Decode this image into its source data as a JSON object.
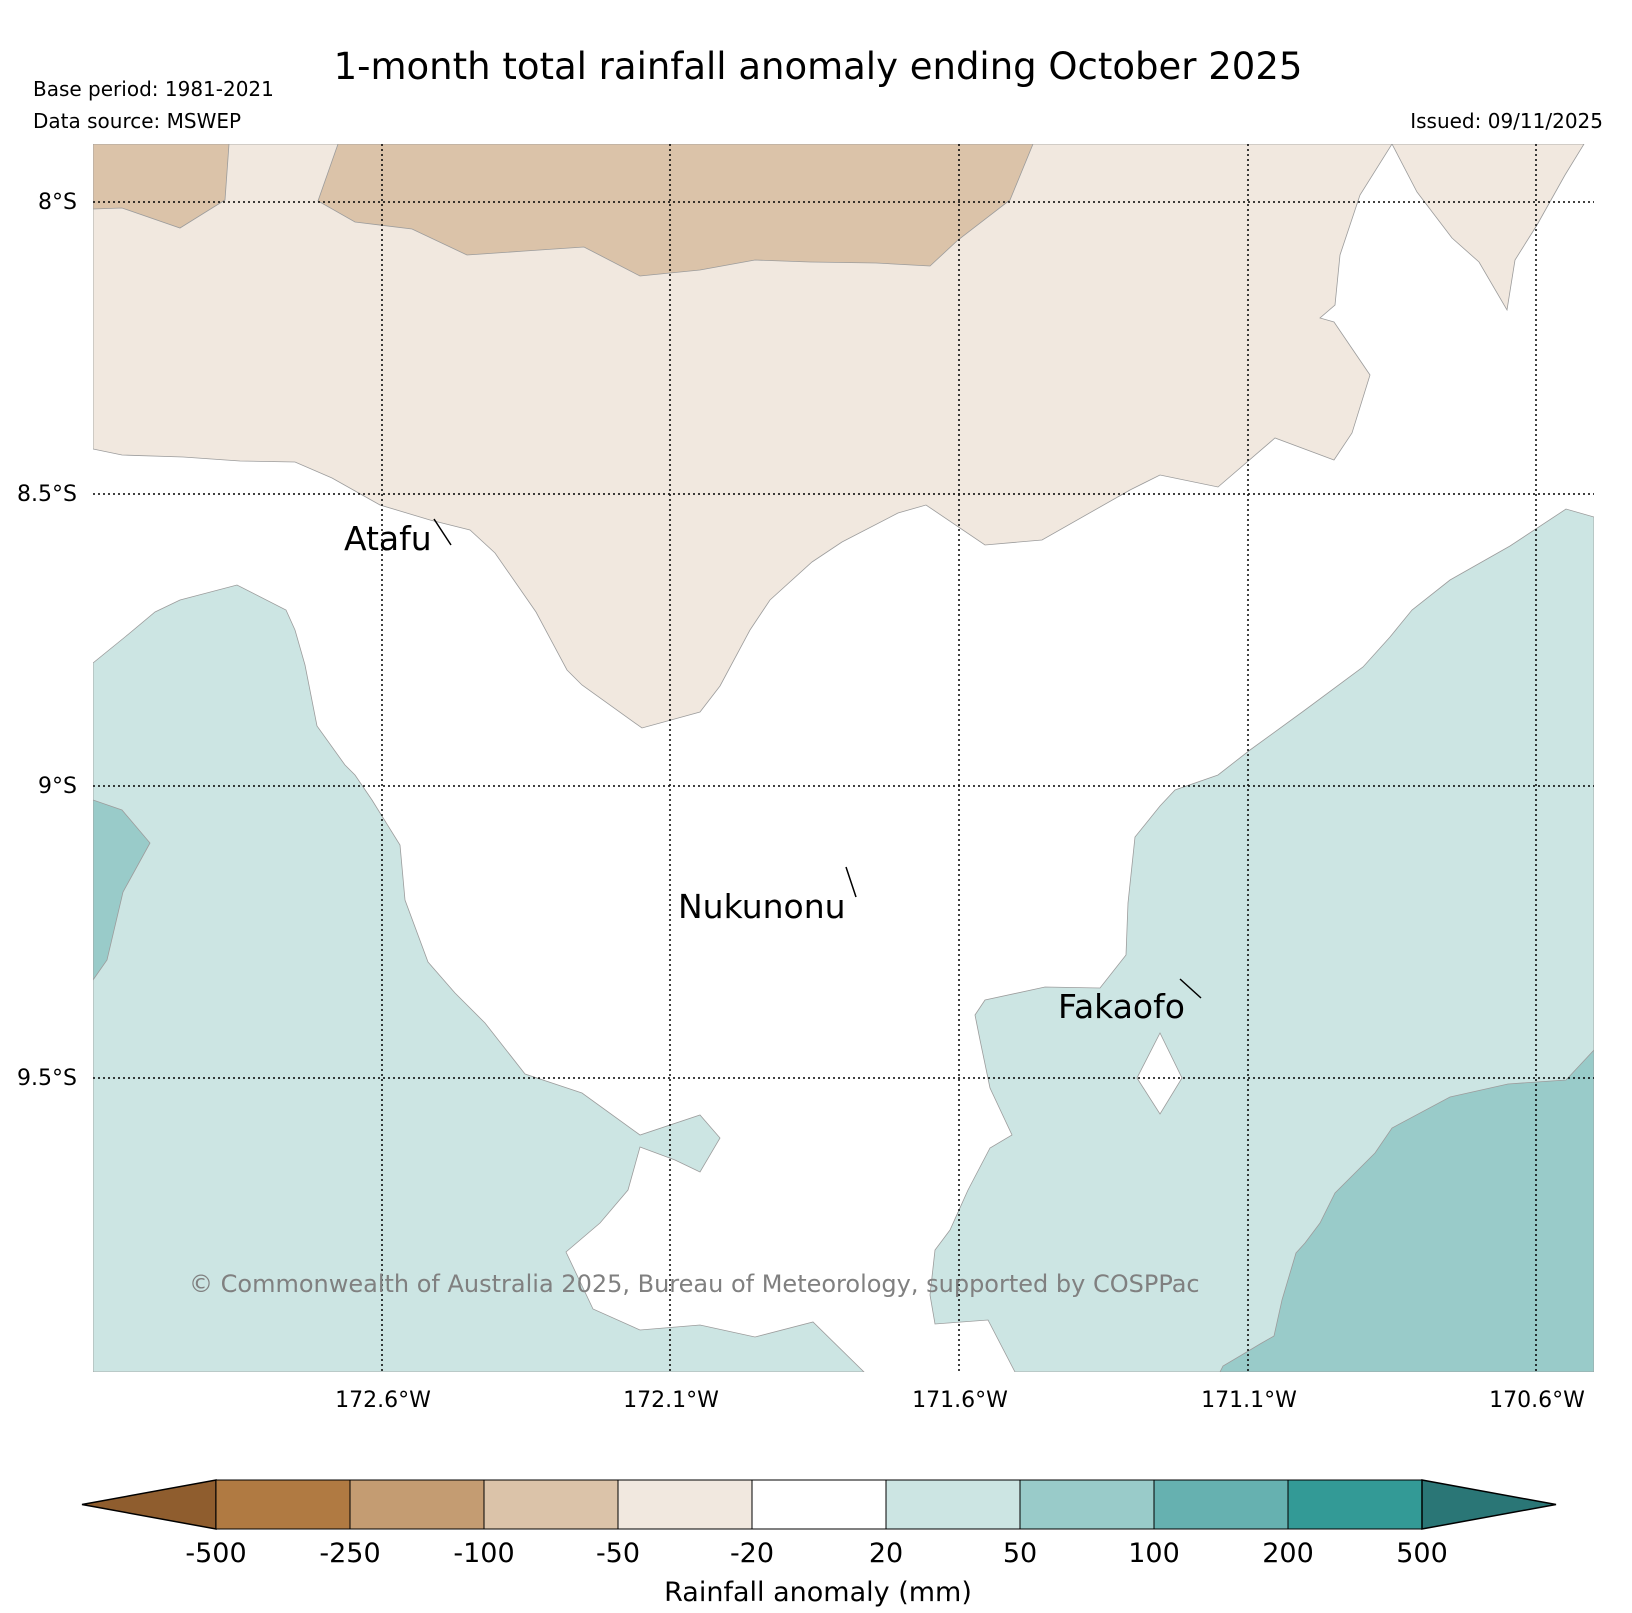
{
  "header": {
    "title": "1-month total rainfall anomaly ending October 2025",
    "base_period": "Base period: 1981-2021",
    "data_source": "Data source: MSWEP",
    "issued": "Issued: 09/11/2025"
  },
  "map": {
    "lat_labels": [
      "8°S",
      "8.5°S",
      "9°S",
      "9.5°S"
    ],
    "lon_labels": [
      "172.6°W",
      "172.1°W",
      "171.6°W",
      "171.1°W",
      "170.6°W"
    ],
    "places": [
      {
        "name": "Atafu"
      },
      {
        "name": "Nukunonu"
      },
      {
        "name": "Fakaofo"
      }
    ],
    "credit": "© Commonwealth of Australia 2025, Bureau of Meteorology, supported by COSPPac",
    "region_colors": {
      "-100 to -50": "#dbc3a9",
      "-50 to -20": "#f1e8df",
      "-20 to 20": "#ffffff",
      "20 to 50": "#cce5e3",
      "50 to 100": "#99cbc9"
    }
  },
  "colorbar": {
    "label": "Rainfall anomaly (mm)",
    "ticks": [
      "-500",
      "-250",
      "-100",
      "-50",
      "-20",
      "20",
      "50",
      "100",
      "200",
      "500"
    ],
    "colors": [
      "#8f5d2e",
      "#b07a42",
      "#c49c72",
      "#dbc3a9",
      "#f1e8df",
      "#ffffff",
      "#cce5e3",
      "#99cbc9",
      "#66b1b0",
      "#339a96",
      "#2a7676"
    ]
  }
}
